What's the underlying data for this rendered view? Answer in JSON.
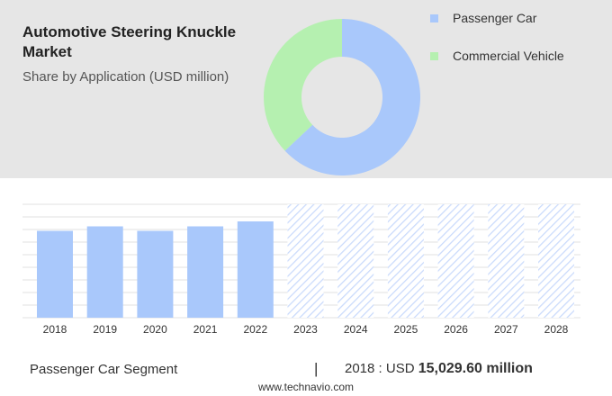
{
  "title": "Automotive Steering Knuckle Market",
  "subtitle": "Share by Application (USD million)",
  "legend": [
    {
      "label": "Passenger Car",
      "color": "#a9c8fb"
    },
    {
      "label": "Commercial Vehicle",
      "color": "#b5f0b0"
    }
  ],
  "chart_data": [
    {
      "type": "pie",
      "title": "Automotive Steering Knuckle Market",
      "subtitle": "Share by Application (USD million)",
      "donut": true,
      "labels": [
        "Passenger Car",
        "Commercial Vehicle"
      ],
      "values": [
        63,
        37
      ],
      "colors": [
        "#a9c8fb",
        "#b5f0b0"
      ],
      "legend": "right"
    },
    {
      "type": "bar",
      "categories": [
        "2018",
        "2019",
        "2020",
        "2021",
        "2022",
        "2023",
        "2024",
        "2025",
        "2026",
        "2027",
        "2028"
      ],
      "values": [
        96.5,
        101.5,
        96.5,
        101.5,
        107,
        null,
        null,
        null,
        null,
        null,
        null
      ],
      "forecast_categories": [
        "2023",
        "2024",
        "2025",
        "2026",
        "2027",
        "2028"
      ],
      "forecast_values": [
        126,
        126,
        126,
        126,
        126,
        126
      ],
      "ylim": [
        0,
        126
      ],
      "grid": true,
      "bar_color": "#a9c8fb",
      "forecast_color": "#c9dafc"
    }
  ],
  "footer": {
    "segment": "Passenger Car Segment",
    "separator": "|",
    "year_label": "2018 : USD",
    "value": "15,029.60 million"
  },
  "source": "www.technavio.com"
}
